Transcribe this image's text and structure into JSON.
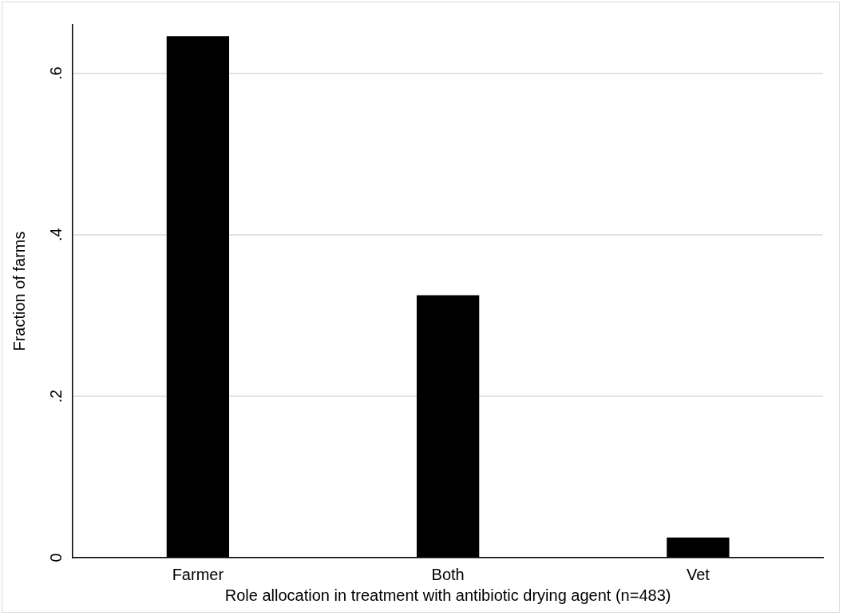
{
  "chart_data": {
    "type": "bar",
    "xlabel": "Role allocation in treatment with antibiotic drying agent (n=483)",
    "ylabel": "Fraction of farms",
    "categories": [
      "Farmer",
      "Both",
      "Vet"
    ],
    "values": [
      0.646,
      0.325,
      0.025
    ],
    "color": "#000000",
    "ylim": [
      0,
      0.66
    ],
    "yticks": [
      0,
      {
        "value": 0.2,
        "label": ".2"
      },
      {
        "value": 0.4,
        "label": ".4"
      },
      {
        "value": 0.6,
        "label": ".6"
      }
    ],
    "grid": "y",
    "legend": false
  }
}
